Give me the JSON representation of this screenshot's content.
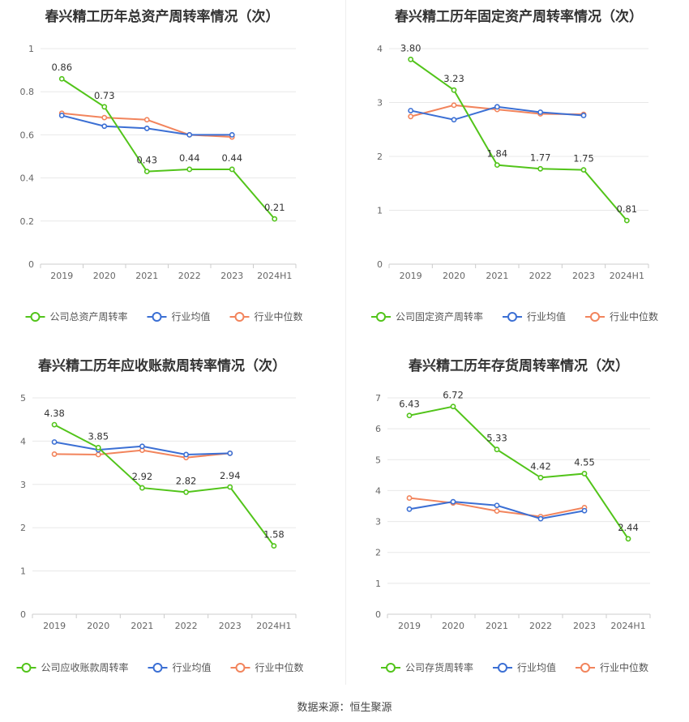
{
  "colors": {
    "company": "#52c41a",
    "avg": "#3b6fd4",
    "median": "#f2845c"
  },
  "source_text": "数据来源：恒生聚源",
  "chart_data": [
    {
      "type": "line",
      "title": "春兴精工历年总资产周转率情况（次）",
      "categories": [
        "2019",
        "2020",
        "2021",
        "2022",
        "2023",
        "2024H1"
      ],
      "ylim": [
        0,
        1
      ],
      "yticks": [
        "0",
        "0.2",
        "0.4",
        "0.6",
        "0.8",
        "1"
      ],
      "legend_position": "bottom",
      "series": [
        {
          "name": "公司总资产周转率",
          "values": [
            0.86,
            0.73,
            0.43,
            0.44,
            0.44,
            0.21
          ],
          "labels": [
            "0.86",
            "0.73",
            "0.43",
            "0.44",
            "0.44",
            "0.21"
          ]
        },
        {
          "name": "行业均值",
          "values": [
            0.69,
            0.64,
            0.63,
            0.6,
            0.6,
            null
          ]
        },
        {
          "name": "行业中位数",
          "values": [
            0.7,
            0.68,
            0.67,
            0.6,
            0.59,
            null
          ]
        }
      ]
    },
    {
      "type": "line",
      "title": "春兴精工历年固定资产周转率情况（次）",
      "categories": [
        "2019",
        "2020",
        "2021",
        "2022",
        "2023",
        "2024H1"
      ],
      "ylim": [
        0,
        4
      ],
      "yticks": [
        "0",
        "1",
        "2",
        "3",
        "4"
      ],
      "legend_position": "bottom",
      "series": [
        {
          "name": "公司固定资产周转率",
          "values": [
            3.8,
            3.23,
            1.84,
            1.77,
            1.75,
            0.81
          ],
          "labels": [
            "3.80",
            "3.23",
            "1.84",
            "1.77",
            "1.75",
            "0.81"
          ]
        },
        {
          "name": "行业均值",
          "values": [
            2.85,
            2.68,
            2.92,
            2.82,
            2.76,
            null
          ]
        },
        {
          "name": "行业中位数",
          "values": [
            2.74,
            2.95,
            2.87,
            2.79,
            2.78,
            null
          ]
        }
      ]
    },
    {
      "type": "line",
      "title": "春兴精工历年应收账款周转率情况（次）",
      "categories": [
        "2019",
        "2020",
        "2021",
        "2022",
        "2023",
        "2024H1"
      ],
      "ylim": [
        0,
        5
      ],
      "yticks": [
        "0",
        "1",
        "2",
        "3",
        "4",
        "5"
      ],
      "legend_position": "bottom",
      "series": [
        {
          "name": "公司应收账款周转率",
          "values": [
            4.38,
            3.85,
            2.92,
            2.82,
            2.94,
            1.58
          ],
          "labels": [
            "4.38",
            "3.85",
            "2.92",
            "2.82",
            "2.94",
            "1.58"
          ]
        },
        {
          "name": "行业均值",
          "values": [
            3.98,
            3.8,
            3.88,
            3.69,
            3.72,
            null
          ]
        },
        {
          "name": "行业中位数",
          "values": [
            3.7,
            3.69,
            3.79,
            3.62,
            3.72,
            null
          ]
        }
      ]
    },
    {
      "type": "line",
      "title": "春兴精工历年存货周转率情况（次）",
      "categories": [
        "2019",
        "2020",
        "2021",
        "2022",
        "2023",
        "2024H1"
      ],
      "ylim": [
        0,
        7
      ],
      "yticks": [
        "0",
        "1",
        "2",
        "3",
        "4",
        "5",
        "6",
        "7"
      ],
      "legend_position": "bottom",
      "series": [
        {
          "name": "公司存货周转率",
          "values": [
            6.43,
            6.72,
            5.33,
            4.42,
            4.55,
            2.44
          ],
          "labels": [
            "6.43",
            "6.72",
            "5.33",
            "4.42",
            "4.55",
            "2.44"
          ]
        },
        {
          "name": "行业均值",
          "values": [
            3.4,
            3.64,
            3.52,
            3.09,
            3.35,
            null
          ]
        },
        {
          "name": "行业中位数",
          "values": [
            3.76,
            3.6,
            3.34,
            3.16,
            3.45,
            null
          ]
        }
      ]
    }
  ]
}
